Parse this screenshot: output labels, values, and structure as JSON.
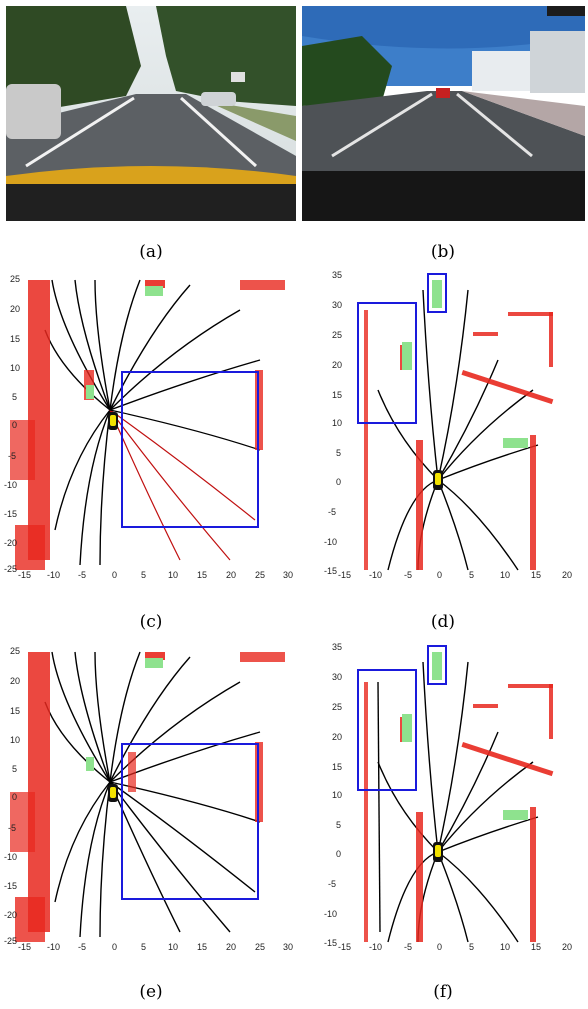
{
  "figure": {
    "captions": {
      "a": "(a)",
      "b": "(b)",
      "c": "(c)",
      "d": "(d)",
      "e": "(e)",
      "f": "(f)"
    },
    "panel_c": {
      "x_ticks": [
        "-15",
        "-10",
        "-5",
        "0",
        "5",
        "10",
        "15",
        "20",
        "25",
        "30"
      ],
      "y_ticks": [
        "25",
        "20",
        "15",
        "10",
        "5",
        "0",
        "-5",
        "-10",
        "-15",
        "-20",
        "-25"
      ]
    },
    "panel_d": {
      "x_ticks": [
        "-15",
        "-10",
        "-5",
        "0",
        "5",
        "10",
        "15",
        "20"
      ],
      "y_ticks": [
        "35",
        "30",
        "25",
        "20",
        "15",
        "10",
        "5",
        "0",
        "-5",
        "-10",
        "-15"
      ]
    },
    "panel_e": {
      "x_ticks": [
        "-15",
        "-10",
        "-5",
        "0",
        "5",
        "10",
        "15",
        "20",
        "25",
        "30"
      ],
      "y_ticks": [
        "25",
        "20",
        "15",
        "10",
        "5",
        "0",
        "-5",
        "-10",
        "-15",
        "-20",
        "-25"
      ]
    },
    "panel_f": {
      "x_ticks": [
        "-15",
        "-10",
        "-5",
        "0",
        "5",
        "10",
        "15",
        "20"
      ],
      "y_ticks": [
        "35",
        "30",
        "25",
        "20",
        "15",
        "10",
        "5",
        "0",
        "-5",
        "-10",
        "-15"
      ]
    },
    "colors": {
      "obstacle": "#e8281e",
      "ray": "#000000",
      "roi_box": "#1a1adc",
      "vehicle_box": "#8ee28e",
      "ego": "#f2e200"
    }
  }
}
